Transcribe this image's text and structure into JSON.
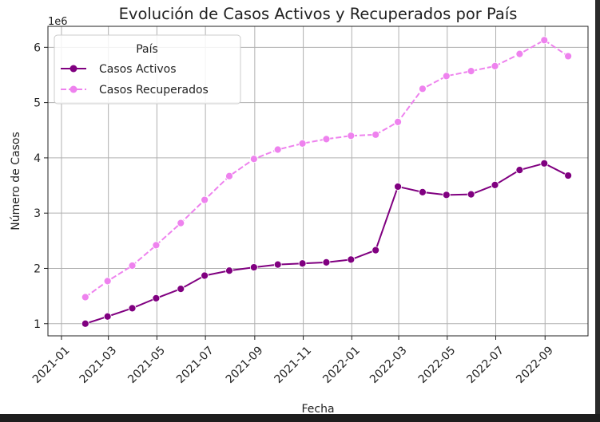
{
  "chart_data": {
    "type": "line",
    "title": "Evolución de Casos Activos y Recuperados por País",
    "xlabel": "Fecha",
    "ylabel": "Número de Casos",
    "y_offset_text": "1e6",
    "grid": true,
    "legend": {
      "title": "País",
      "placement": "top-left"
    },
    "xlim": [
      "2020-12-15",
      "2022-10-25"
    ],
    "ylim": [
      0.78,
      6.38
    ],
    "x_ticks": [
      {
        "date": "2021-01-01",
        "label": "2021-01"
      },
      {
        "date": "2021-03-01",
        "label": "2021-03"
      },
      {
        "date": "2021-05-01",
        "label": "2021-05"
      },
      {
        "date": "2021-07-01",
        "label": "2021-07"
      },
      {
        "date": "2021-09-01",
        "label": "2021-09"
      },
      {
        "date": "2021-11-01",
        "label": "2021-11"
      },
      {
        "date": "2022-01-01",
        "label": "2022-01"
      },
      {
        "date": "2022-03-01",
        "label": "2022-03"
      },
      {
        "date": "2022-05-01",
        "label": "2022-05"
      },
      {
        "date": "2022-07-01",
        "label": "2022-07"
      },
      {
        "date": "2022-09-01",
        "label": "2022-09"
      }
    ],
    "y_ticks": [
      {
        "value": 1,
        "label": "1"
      },
      {
        "value": 2,
        "label": "2"
      },
      {
        "value": 3,
        "label": "3"
      },
      {
        "value": 4,
        "label": "4"
      },
      {
        "value": 5,
        "label": "5"
      },
      {
        "value": 6,
        "label": "6"
      }
    ],
    "x": [
      "2021-01-31",
      "2021-02-28",
      "2021-03-31",
      "2021-04-30",
      "2021-05-31",
      "2021-06-30",
      "2021-07-31",
      "2021-08-31",
      "2021-09-30",
      "2021-10-31",
      "2021-11-30",
      "2021-12-31",
      "2022-01-31",
      "2022-02-28",
      "2022-03-31",
      "2022-04-30",
      "2022-05-31",
      "2022-06-30",
      "2022-07-31",
      "2022-08-31",
      "2022-09-30"
    ],
    "series": [
      {
        "name": "Casos Activos",
        "color": "#800080",
        "style": "solid",
        "values": [
          1.0,
          1.13,
          1.28,
          1.46,
          1.63,
          1.87,
          1.96,
          2.02,
          2.07,
          2.09,
          2.11,
          2.16,
          2.33,
          3.48,
          3.38,
          3.33,
          3.34,
          3.51,
          3.78,
          3.9,
          3.68
        ]
      },
      {
        "name": "Casos Recuperados",
        "color": "#ee82ee",
        "style": "dashed",
        "values": [
          1.48,
          1.77,
          2.05,
          2.42,
          2.82,
          3.24,
          3.67,
          3.98,
          4.15,
          4.26,
          4.34,
          4.4,
          4.42,
          4.65,
          5.25,
          5.48,
          5.57,
          5.66,
          5.88,
          6.13,
          5.84
        ]
      }
    ]
  }
}
